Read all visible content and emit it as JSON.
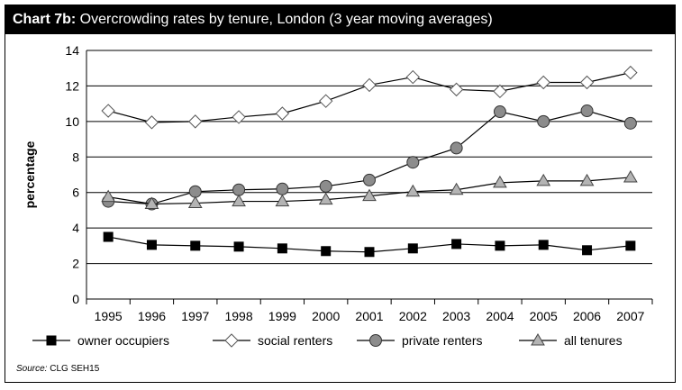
{
  "chart_title_prefix": "Chart 7b:",
  "chart_title_rest": " Overcrowding rates by tenure, London (3 year moving averages)",
  "source_label": "Source:",
  "source_text": " CLG SEH15",
  "chart_data": {
    "type": "line",
    "title": "Chart 7b: Overcrowding rates by tenure, London (3 year moving averages)",
    "xlabel": "",
    "ylabel": "percentage",
    "ylim": [
      0,
      14
    ],
    "yticks": [
      0,
      2,
      4,
      6,
      8,
      10,
      12,
      14
    ],
    "grid": "horizontal",
    "legend_position": "bottom",
    "categories": [
      "1995",
      "1996",
      "1997",
      "1998",
      "1999",
      "2000",
      "2001",
      "2002",
      "2003",
      "2004",
      "2005",
      "2006",
      "2007"
    ],
    "series": [
      {
        "name": "owner occupiers",
        "marker": "square",
        "fill": "#000000",
        "values": [
          3.5,
          3.05,
          3.0,
          2.95,
          2.85,
          2.7,
          2.65,
          2.85,
          3.1,
          3.0,
          3.05,
          2.75,
          3.0
        ]
      },
      {
        "name": "social renters",
        "marker": "diamond",
        "fill": "#ffffff",
        "values": [
          10.6,
          9.95,
          10.0,
          10.25,
          10.45,
          11.15,
          12.05,
          12.5,
          11.8,
          11.7,
          12.2,
          12.2,
          12.75
        ]
      },
      {
        "name": "private renters",
        "marker": "circle",
        "fill": "#8c8c8c",
        "values": [
          5.5,
          5.35,
          6.05,
          6.15,
          6.2,
          6.35,
          6.7,
          7.7,
          8.5,
          10.55,
          10.0,
          10.6,
          9.9
        ]
      },
      {
        "name": "all tenures",
        "marker": "triangle",
        "fill": "#b4b4b4",
        "values": [
          5.75,
          5.35,
          5.4,
          5.5,
          5.5,
          5.6,
          5.8,
          6.05,
          6.15,
          6.55,
          6.65,
          6.65,
          6.85
        ]
      }
    ]
  }
}
